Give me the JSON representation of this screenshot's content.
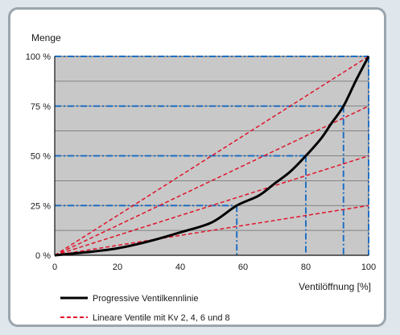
{
  "chart_data": {
    "type": "line",
    "title": "",
    "ylabel": "Menge",
    "xlabel": "Ventilöffnung [%]",
    "xlim": [
      0,
      100
    ],
    "ylim": [
      0,
      100
    ],
    "x_ticks": [
      {
        "value": 0,
        "label": "0"
      },
      {
        "value": 20,
        "label": "20"
      },
      {
        "value": 40,
        "label": "40"
      },
      {
        "value": 60,
        "label": "60"
      },
      {
        "value": 80,
        "label": "80"
      },
      {
        "value": 100,
        "label": "100"
      }
    ],
    "y_ticks": [
      {
        "value": 0,
        "label": "0 %"
      },
      {
        "value": 25,
        "label": "25 %"
      },
      {
        "value": 50,
        "label": "50 %"
      },
      {
        "value": 75,
        "label": "75 %"
      },
      {
        "value": 100,
        "label": "100 %"
      }
    ],
    "y_gridlines": [
      12.5,
      25,
      37.5,
      50,
      62.5,
      75,
      87.5
    ],
    "grid": true,
    "legend_position": "bottom-left",
    "series": [
      {
        "name": "Progressive Ventilkennlinie",
        "color": "#000000",
        "style": "solid",
        "x": [
          0,
          10,
          20,
          30,
          40,
          50,
          58,
          65,
          70,
          75,
          80,
          85,
          88,
          92,
          96,
          100
        ],
        "y": [
          0,
          1.5,
          3.5,
          7,
          11.5,
          16.5,
          25,
          30,
          36,
          42,
          50,
          59,
          66,
          75,
          88,
          100
        ]
      },
      {
        "name": "Lineare Ventile mit Kv 2, 4, 6 und 8",
        "color": "#e0142b",
        "style": "dashed",
        "lines": [
          {
            "x": [
              0,
              100
            ],
            "y": [
              0,
              25
            ]
          },
          {
            "x": [
              0,
              100
            ],
            "y": [
              0,
              50
            ]
          },
          {
            "x": [
              0,
              100
            ],
            "y": [
              0,
              75
            ]
          },
          {
            "x": [
              0,
              100
            ],
            "y": [
              0,
              100
            ]
          }
        ]
      }
    ],
    "reference_lines": {
      "color": "#1f6fc4",
      "points": [
        {
          "x": 58,
          "y": 25
        },
        {
          "x": 80,
          "y": 50
        },
        {
          "x": 92,
          "y": 75
        },
        {
          "x": 100,
          "y": 100
        }
      ]
    },
    "plot_background": "#c8c8c8"
  }
}
